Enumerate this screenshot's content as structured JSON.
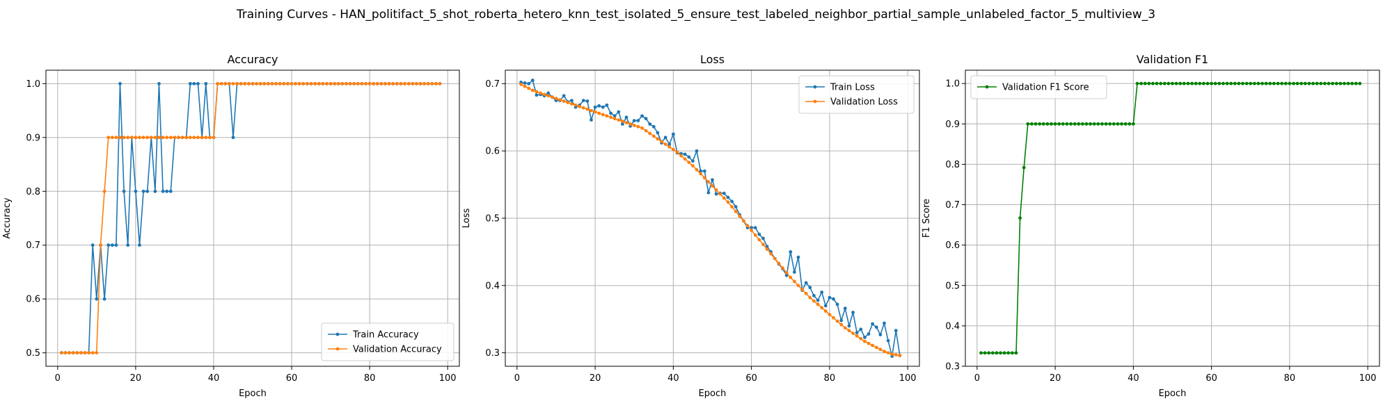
{
  "suptitle": "Training Curves - HAN_politifact_5_shot_roberta_hetero_knn_test_isolated_5_ensure_test_labeled_neighbor_partial_sample_unlabeled_factor_5_multiview_3",
  "colors": {
    "blue": "#1f77b4",
    "orange": "#ff7f0e",
    "green": "#008000",
    "grid": "#b0b0b0"
  },
  "chart_data": [
    {
      "type": "line",
      "title": "Accuracy",
      "xlabel": "Epoch",
      "ylabel": "Accuracy",
      "xlim": [
        -3,
        103
      ],
      "ylim": [
        0.475,
        1.025
      ],
      "xticks": [
        0,
        20,
        40,
        60,
        80,
        100
      ],
      "yticks": [
        0.5,
        0.6,
        0.7,
        0.8,
        0.9,
        1.0
      ],
      "ytick_labels": [
        "0.5",
        "0.6",
        "0.7",
        "0.8",
        "0.9",
        "1.0"
      ],
      "grid": true,
      "legend": "lower-right",
      "x_start": 1,
      "series": [
        {
          "name": "Train Accuracy",
          "color": "#1f77b4",
          "values": [
            0.5,
            0.5,
            0.5,
            0.5,
            0.5,
            0.5,
            0.5,
            0.5,
            0.7,
            0.6,
            0.7,
            0.6,
            0.7,
            0.7,
            0.7,
            1.0,
            0.8,
            0.7,
            0.9,
            0.8,
            0.7,
            0.8,
            0.8,
            0.9,
            0.8,
            1.0,
            0.8,
            0.8,
            0.8,
            0.9,
            0.9,
            0.9,
            0.9,
            1.0,
            1.0,
            1.0,
            0.9,
            1.0,
            0.9,
            0.9,
            1.0,
            1.0,
            1.0,
            1.0,
            0.9,
            1.0,
            1.0,
            1.0,
            1.0,
            1.0,
            1.0,
            1.0,
            1.0,
            1.0,
            1.0,
            1.0,
            1.0,
            1.0,
            1.0,
            1.0,
            1.0,
            1.0,
            1.0,
            1.0,
            1.0,
            1.0,
            1.0,
            1.0,
            1.0,
            1.0,
            1.0,
            1.0,
            1.0,
            1.0,
            1.0,
            1.0,
            1.0,
            1.0,
            1.0,
            1.0,
            1.0,
            1.0,
            1.0,
            1.0,
            1.0,
            1.0,
            1.0,
            1.0,
            1.0,
            1.0,
            1.0,
            1.0,
            1.0,
            1.0,
            1.0,
            1.0,
            1.0,
            1.0
          ]
        },
        {
          "name": "Validation Accuracy",
          "color": "#ff7f0e",
          "values": [
            0.5,
            0.5,
            0.5,
            0.5,
            0.5,
            0.5,
            0.5,
            0.5,
            0.5,
            0.5,
            0.7,
            0.8,
            0.9,
            0.9,
            0.9,
            0.9,
            0.9,
            0.9,
            0.9,
            0.9,
            0.9,
            0.9,
            0.9,
            0.9,
            0.9,
            0.9,
            0.9,
            0.9,
            0.9,
            0.9,
            0.9,
            0.9,
            0.9,
            0.9,
            0.9,
            0.9,
            0.9,
            0.9,
            0.9,
            0.9,
            1.0,
            1.0,
            1.0,
            1.0,
            1.0,
            1.0,
            1.0,
            1.0,
            1.0,
            1.0,
            1.0,
            1.0,
            1.0,
            1.0,
            1.0,
            1.0,
            1.0,
            1.0,
            1.0,
            1.0,
            1.0,
            1.0,
            1.0,
            1.0,
            1.0,
            1.0,
            1.0,
            1.0,
            1.0,
            1.0,
            1.0,
            1.0,
            1.0,
            1.0,
            1.0,
            1.0,
            1.0,
            1.0,
            1.0,
            1.0,
            1.0,
            1.0,
            1.0,
            1.0,
            1.0,
            1.0,
            1.0,
            1.0,
            1.0,
            1.0,
            1.0,
            1.0,
            1.0,
            1.0,
            1.0,
            1.0,
            1.0,
            1.0
          ]
        }
      ]
    },
    {
      "type": "line",
      "title": "Loss",
      "xlabel": "Epoch",
      "ylabel": "Loss",
      "xlim": [
        -3,
        103
      ],
      "ylim": [
        0.28,
        0.72
      ],
      "xticks": [
        0,
        20,
        40,
        60,
        80,
        100
      ],
      "yticks": [
        0.3,
        0.4,
        0.5,
        0.6,
        0.7
      ],
      "ytick_labels": [
        "0.3",
        "0.4",
        "0.5",
        "0.6",
        "0.7"
      ],
      "grid": true,
      "legend": "upper-right",
      "x_start": 1,
      "series": [
        {
          "name": "Train Loss",
          "color": "#1f77b4",
          "values": [
            0.702,
            0.701,
            0.7,
            0.705,
            0.683,
            0.684,
            0.682,
            0.686,
            0.68,
            0.675,
            0.675,
            0.682,
            0.673,
            0.675,
            0.665,
            0.668,
            0.675,
            0.674,
            0.646,
            0.665,
            0.667,
            0.665,
            0.668,
            0.656,
            0.652,
            0.658,
            0.64,
            0.65,
            0.637,
            0.645,
            0.645,
            0.652,
            0.648,
            0.64,
            0.636,
            0.627,
            0.612,
            0.62,
            0.61,
            0.625,
            0.597,
            0.596,
            0.595,
            0.591,
            0.585,
            0.6,
            0.57,
            0.57,
            0.538,
            0.557,
            0.536,
            0.537,
            0.537,
            0.531,
            0.525,
            0.517,
            0.505,
            0.496,
            0.486,
            0.486,
            0.486,
            0.476,
            0.47,
            0.458,
            0.45,
            0.44,
            0.432,
            0.425,
            0.415,
            0.45,
            0.42,
            0.442,
            0.393,
            0.404,
            0.397,
            0.385,
            0.378,
            0.39,
            0.37,
            0.382,
            0.38,
            0.372,
            0.348,
            0.366,
            0.34,
            0.36,
            0.33,
            0.335,
            0.323,
            0.328,
            0.343,
            0.338,
            0.327,
            0.344,
            0.318,
            0.295,
            0.333,
            0.296
          ]
        },
        {
          "name": "Validation Loss",
          "color": "#ff7f0e",
          "values": [
            0.699,
            0.696,
            0.693,
            0.69,
            0.688,
            0.686,
            0.684,
            0.682,
            0.68,
            0.678,
            0.676,
            0.674,
            0.672,
            0.67,
            0.668,
            0.666,
            0.664,
            0.662,
            0.66,
            0.658,
            0.656,
            0.654,
            0.652,
            0.65,
            0.648,
            0.646,
            0.644,
            0.642,
            0.64,
            0.638,
            0.636,
            0.634,
            0.63,
            0.626,
            0.622,
            0.618,
            0.614,
            0.61,
            0.606,
            0.602,
            0.598,
            0.593,
            0.588,
            0.583,
            0.578,
            0.572,
            0.566,
            0.56,
            0.554,
            0.548,
            0.542,
            0.536,
            0.53,
            0.524,
            0.517,
            0.51,
            0.503,
            0.496,
            0.489,
            0.482,
            0.475,
            0.468,
            0.461,
            0.454,
            0.447,
            0.44,
            0.433,
            0.426,
            0.419,
            0.412,
            0.406,
            0.4,
            0.394,
            0.388,
            0.382,
            0.377,
            0.372,
            0.367,
            0.362,
            0.357,
            0.352,
            0.347,
            0.342,
            0.337,
            0.333,
            0.329,
            0.325,
            0.321,
            0.317,
            0.314,
            0.311,
            0.308,
            0.305,
            0.302,
            0.3,
            0.298,
            0.297,
            0.296
          ]
        }
      ]
    },
    {
      "type": "line",
      "title": "Validation F1",
      "xlabel": "Epoch",
      "ylabel": "F1 Score",
      "xlim": [
        -3,
        103
      ],
      "ylim": [
        0.3,
        1.033
      ],
      "xticks": [
        0,
        20,
        40,
        60,
        80,
        100
      ],
      "yticks": [
        0.3,
        0.4,
        0.5,
        0.6,
        0.7,
        0.8,
        0.9,
        1.0
      ],
      "ytick_labels": [
        "0.3",
        "0.4",
        "0.5",
        "0.6",
        "0.7",
        "0.8",
        "0.9",
        "1.0"
      ],
      "grid": true,
      "legend": "upper-left",
      "x_start": 1,
      "series": [
        {
          "name": "Validation F1 Score",
          "color": "#008000",
          "values": [
            0.333,
            0.333,
            0.333,
            0.333,
            0.333,
            0.333,
            0.333,
            0.333,
            0.333,
            0.333,
            0.667,
            0.792,
            0.9,
            0.9,
            0.9,
            0.9,
            0.9,
            0.9,
            0.9,
            0.9,
            0.9,
            0.9,
            0.9,
            0.9,
            0.9,
            0.9,
            0.9,
            0.9,
            0.9,
            0.9,
            0.9,
            0.9,
            0.9,
            0.9,
            0.9,
            0.9,
            0.9,
            0.9,
            0.9,
            0.9,
            1.0,
            1.0,
            1.0,
            1.0,
            1.0,
            1.0,
            1.0,
            1.0,
            1.0,
            1.0,
            1.0,
            1.0,
            1.0,
            1.0,
            1.0,
            1.0,
            1.0,
            1.0,
            1.0,
            1.0,
            1.0,
            1.0,
            1.0,
            1.0,
            1.0,
            1.0,
            1.0,
            1.0,
            1.0,
            1.0,
            1.0,
            1.0,
            1.0,
            1.0,
            1.0,
            1.0,
            1.0,
            1.0,
            1.0,
            1.0,
            1.0,
            1.0,
            1.0,
            1.0,
            1.0,
            1.0,
            1.0,
            1.0,
            1.0,
            1.0,
            1.0,
            1.0,
            1.0,
            1.0,
            1.0,
            1.0,
            1.0,
            1.0
          ]
        }
      ]
    }
  ]
}
